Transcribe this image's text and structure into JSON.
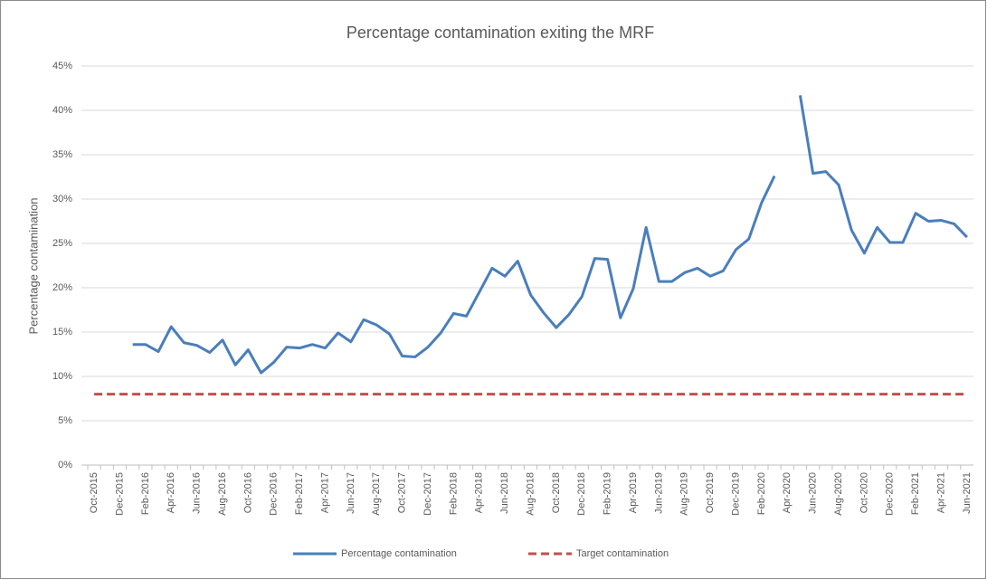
{
  "chart_data": {
    "type": "line",
    "title": "Percentage contamination exiting the MRF",
    "y_label": "Percentage contamination",
    "categories": [
      "Oct-2015",
      null,
      "Dec-2015",
      null,
      "Feb-2016",
      null,
      "Apr-2016",
      null,
      "Jun-2016",
      null,
      "Aug-2016",
      null,
      "Oct-2016",
      null,
      "Dec-2016",
      null,
      "Feb-2017",
      null,
      "Apr-2017",
      null,
      "Jun-2017",
      null,
      "Aug-2017",
      null,
      "Oct-2017",
      null,
      "Dec-2017",
      null,
      "Feb-2018",
      null,
      "Apr-2018",
      null,
      "Jun-2018",
      null,
      "Aug-2018",
      null,
      "Oct-2018",
      null,
      "Dec-2018",
      null,
      "Feb-2019",
      null,
      "Apr-2019",
      null,
      "Jun-2019",
      null,
      "Aug-2019",
      null,
      "Oct-2019",
      null,
      "Dec-2019",
      null,
      "Feb-2020",
      null,
      "Apr-2020",
      null,
      "Jun-2020",
      null,
      "Aug-2020",
      null,
      "Oct-2020",
      null,
      "Dec-2020",
      null,
      "Feb-2021",
      null,
      "Apr-2021",
      null,
      "Jun-2021"
    ],
    "series": [
      {
        "name": "Percentage contamination",
        "color": "#4a7ebb",
        "dashed": false,
        "values": [
          null,
          null,
          null,
          13.6,
          13.6,
          12.8,
          15.6,
          13.8,
          13.5,
          12.7,
          14.1,
          11.3,
          13.0,
          10.4,
          11.6,
          13.3,
          13.2,
          13.6,
          13.2,
          14.9,
          13.9,
          16.4,
          15.8,
          14.8,
          12.3,
          12.2,
          13.3,
          14.9,
          17.1,
          16.8,
          19.5,
          22.2,
          21.3,
          23.0,
          19.2,
          17.2,
          15.5,
          17.0,
          19.0,
          23.3,
          23.2,
          16.6,
          19.9,
          26.8,
          20.7,
          20.7,
          21.7,
          22.2,
          21.3,
          21.9,
          24.3,
          25.5,
          29.6,
          32.6,
          null,
          41.7,
          32.9,
          33.1,
          31.6,
          26.5,
          23.9,
          26.8,
          25.1,
          25.1,
          28.4,
          27.5,
          27.6,
          27.2,
          25.7
        ]
      },
      {
        "name": "Target contamination",
        "color": "#c0504d",
        "dashed": true,
        "values": [
          8,
          8,
          8,
          8,
          8,
          8,
          8,
          8,
          8,
          8,
          8,
          8,
          8,
          8,
          8,
          8,
          8,
          8,
          8,
          8,
          8,
          8,
          8,
          8,
          8,
          8,
          8,
          8,
          8,
          8,
          8,
          8,
          8,
          8,
          8,
          8,
          8,
          8,
          8,
          8,
          8,
          8,
          8,
          8,
          8,
          8,
          8,
          8,
          8,
          8,
          8,
          8,
          8,
          8,
          8,
          8,
          8,
          8,
          8,
          8,
          8,
          8,
          8,
          8,
          8,
          8,
          8,
          8,
          8
        ]
      }
    ],
    "ylim": [
      0,
      45
    ],
    "yticks": [
      {
        "value": 0,
        "label": "0%"
      },
      {
        "value": 5,
        "label": "5%"
      },
      {
        "value": 10,
        "label": "10%"
      },
      {
        "value": 15,
        "label": "15%"
      },
      {
        "value": 20,
        "label": "20%"
      },
      {
        "value": 25,
        "label": "25%"
      },
      {
        "value": 30,
        "label": "30%"
      },
      {
        "value": 35,
        "label": "35%"
      },
      {
        "value": 40,
        "label": "40%"
      },
      {
        "value": 45,
        "label": "45%"
      }
    ],
    "grid": true,
    "legend": "bottom"
  }
}
